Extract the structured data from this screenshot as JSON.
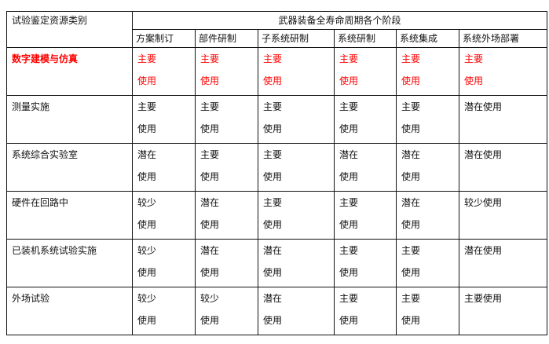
{
  "header": {
    "category_label": "试验鉴定资源类别",
    "stages_label": "武器装备全寿命周期各个阶段",
    "stages": [
      "方案制订",
      "部件研制",
      "子系统研制",
      "系统研制",
      "系统集成",
      "系统外场部署"
    ]
  },
  "highlight_color": "#ff0000",
  "rows": [
    {
      "name": "数字建模与仿真",
      "highlight": true,
      "cells": [
        [
          "主要",
          "使用"
        ],
        [
          "主要",
          "使用"
        ],
        [
          "主要",
          "使用"
        ],
        [
          "主要",
          "使用"
        ],
        [
          "主要",
          "使用"
        ],
        [
          "主要",
          "使用"
        ]
      ]
    },
    {
      "name": "测量实施",
      "cells": [
        [
          "主要",
          "使用"
        ],
        [
          "主要",
          "使用"
        ],
        [
          "主要",
          "使用"
        ],
        [
          "主要",
          "使用"
        ],
        [
          "主要",
          "使用"
        ],
        [
          "潜在使用",
          ""
        ]
      ]
    },
    {
      "name": "系统综合实验室",
      "cells": [
        [
          "潜在",
          "使用"
        ],
        [
          "主要",
          "使用"
        ],
        [
          "主要",
          "使用"
        ],
        [
          "潜在",
          "使用"
        ],
        [
          "潜在",
          "使用"
        ],
        [
          "潜在使用",
          ""
        ]
      ]
    },
    {
      "name": "硬件在回路中",
      "cells": [
        [
          "较少",
          "使用"
        ],
        [
          "潜在",
          "使用"
        ],
        [
          "主要",
          "使用"
        ],
        [
          "主要",
          "使用"
        ],
        [
          "潜在",
          "使用"
        ],
        [
          "较少使用",
          ""
        ]
      ]
    },
    {
      "name": "已装机系统试验实施",
      "cells": [
        [
          "较少",
          "使用"
        ],
        [
          "潜在",
          "使用"
        ],
        [
          "潜在",
          "使用"
        ],
        [
          "主要",
          "使用"
        ],
        [
          "主要",
          "使用"
        ],
        [
          "潜在使用",
          ""
        ]
      ]
    },
    {
      "name": "外场试验",
      "cells": [
        [
          "较少",
          "使用"
        ],
        [
          "较少",
          "使用"
        ],
        [
          "潜在",
          "使用"
        ],
        [
          "主要",
          "使用"
        ],
        [
          "主要",
          "使用"
        ],
        [
          "主要使用",
          ""
        ]
      ]
    }
  ]
}
